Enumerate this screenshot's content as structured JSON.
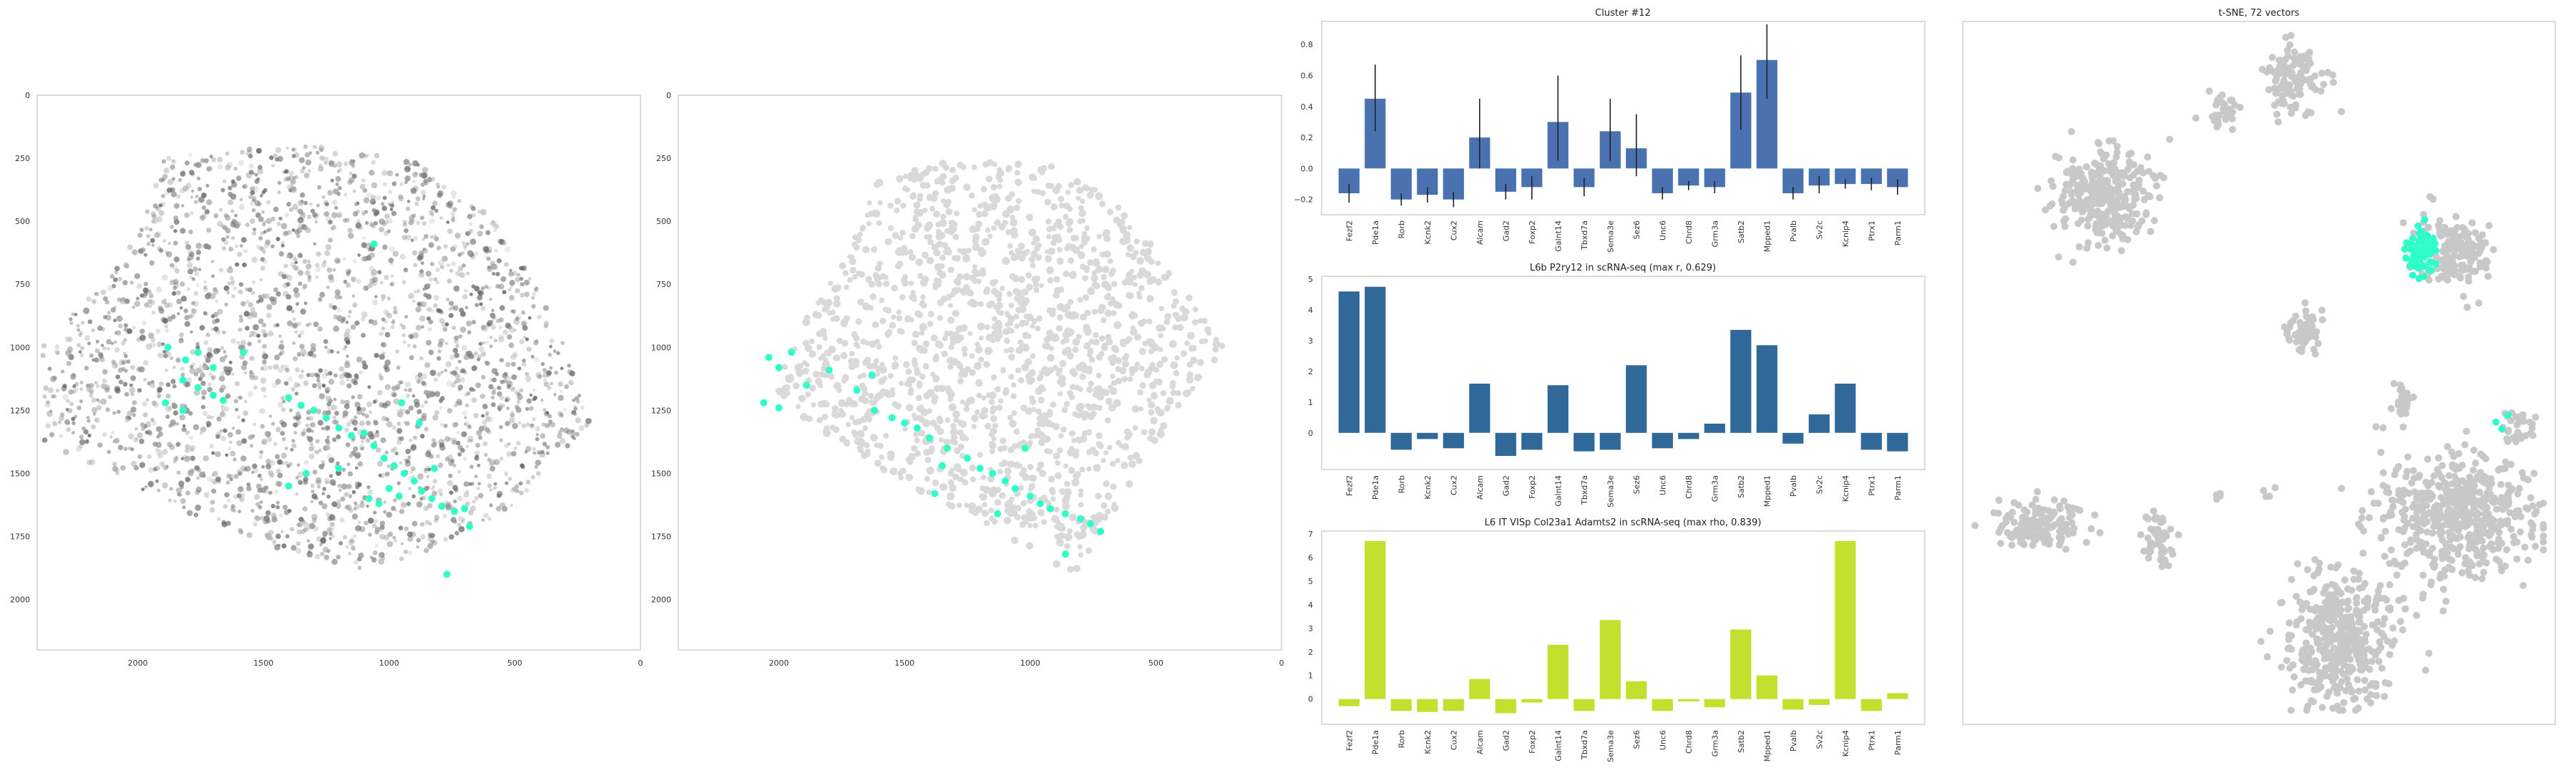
{
  "figure": {
    "colors": {
      "highlight": "#2effc8",
      "cell_gray": "#c8c8c8",
      "bar_blue": "#4a72b0",
      "bar_steel": "#30689a",
      "bar_lime": "#c3e02e",
      "frame": "#cfcfcf"
    }
  },
  "chart_data": [
    {
      "type": "scatter",
      "name": "spatial-expression",
      "title": "",
      "xlim": [
        2400,
        0
      ],
      "ylim": [
        2200,
        0
      ],
      "x_ticks": [
        "2000",
        "1500",
        "1000",
        "500",
        "0"
      ],
      "y_ticks": [
        "0",
        "250",
        "500",
        "750",
        "1000",
        "1250",
        "1500",
        "1750",
        "2000"
      ],
      "grid": false,
      "highlight_points": [
        [
          1880,
          1000
        ],
        [
          1810,
          1050
        ],
        [
          1760,
          1020
        ],
        [
          1700,
          1080
        ],
        [
          1580,
          1020
        ],
        [
          1820,
          1130
        ],
        [
          1760,
          1160
        ],
        [
          1700,
          1190
        ],
        [
          1660,
          1210
        ],
        [
          1890,
          1220
        ],
        [
          1820,
          1250
        ],
        [
          1400,
          1200
        ],
        [
          1350,
          1230
        ],
        [
          1300,
          1250
        ],
        [
          1250,
          1280
        ],
        [
          1200,
          1320
        ],
        [
          1150,
          1350
        ],
        [
          1100,
          1340
        ],
        [
          1060,
          1390
        ],
        [
          1020,
          1440
        ],
        [
          980,
          1470
        ],
        [
          940,
          1500
        ],
        [
          900,
          1530
        ],
        [
          870,
          1570
        ],
        [
          830,
          1600
        ],
        [
          790,
          1630
        ],
        [
          740,
          1650
        ],
        [
          700,
          1640
        ],
        [
          1000,
          1560
        ],
        [
          960,
          1590
        ],
        [
          1080,
          1600
        ],
        [
          1040,
          1620
        ],
        [
          1200,
          1480
        ],
        [
          1330,
          1500
        ],
        [
          1400,
          1550
        ],
        [
          950,
          1220
        ],
        [
          880,
          1300
        ],
        [
          820,
          1480
        ],
        [
          1060,
          590
        ],
        [
          680,
          1710
        ],
        [
          770,
          1900
        ]
      ]
    },
    {
      "type": "scatter",
      "name": "spatial-cluster",
      "title": "",
      "xlim": [
        2400,
        0
      ],
      "ylim": [
        2200,
        0
      ],
      "x_ticks": [
        "2000",
        "1500",
        "1000",
        "500",
        "0"
      ],
      "y_ticks": [
        "0",
        "250",
        "500",
        "750",
        "1000",
        "1250",
        "1500",
        "1750",
        "2000"
      ],
      "grid": false,
      "highlight_points": [
        [
          2040,
          1040
        ],
        [
          2000,
          1080
        ],
        [
          1950,
          1020
        ],
        [
          1890,
          1150
        ],
        [
          1800,
          1090
        ],
        [
          1630,
          1110
        ],
        [
          1690,
          1170
        ],
        [
          2060,
          1220
        ],
        [
          2000,
          1240
        ],
        [
          1620,
          1250
        ],
        [
          1550,
          1280
        ],
        [
          1500,
          1300
        ],
        [
          1450,
          1320
        ],
        [
          1400,
          1360
        ],
        [
          1330,
          1400
        ],
        [
          1250,
          1440
        ],
        [
          1200,
          1480
        ],
        [
          1150,
          1500
        ],
        [
          1100,
          1530
        ],
        [
          1060,
          1560
        ],
        [
          1000,
          1590
        ],
        [
          960,
          1620
        ],
        [
          920,
          1640
        ],
        [
          860,
          1660
        ],
        [
          800,
          1680
        ],
        [
          760,
          1700
        ],
        [
          720,
          1730
        ],
        [
          1020,
          1400
        ],
        [
          1130,
          1660
        ],
        [
          860,
          1820
        ],
        [
          1380,
          1580
        ],
        [
          1350,
          1470
        ]
      ]
    },
    {
      "type": "bar",
      "name": "cluster-12",
      "title": "Cluster #12",
      "categories": [
        "Fezf2",
        "Pde1a",
        "Rorb",
        "Kcnk2",
        "Cux2",
        "Alcam",
        "Gad2",
        "Foxp2",
        "Galnt14",
        "Tbxd7a",
        "Sema3e",
        "Sez6",
        "Unc6",
        "Chrd8",
        "Grm3a",
        "Satb2",
        "Mpped1",
        "Pvalb",
        "Sv2c",
        "Kcnip4",
        "Ptrx1",
        "Parm1"
      ],
      "values": [
        -0.16,
        0.45,
        -0.2,
        -0.17,
        -0.2,
        0.2,
        -0.15,
        -0.12,
        0.3,
        -0.12,
        0.24,
        0.13,
        -0.16,
        -0.11,
        -0.12,
        0.49,
        0.7,
        -0.16,
        -0.11,
        -0.1,
        -0.1,
        -0.12
      ],
      "errors": [
        [
          -0.22,
          -0.1
        ],
        [
          0.24,
          0.67
        ],
        [
          -0.24,
          -0.16
        ],
        [
          -0.22,
          -0.12
        ],
        [
          -0.25,
          -0.15
        ],
        [
          0.0,
          0.45
        ],
        [
          -0.2,
          -0.1
        ],
        [
          -0.2,
          -0.05
        ],
        [
          0.05,
          0.6
        ],
        [
          -0.18,
          -0.06
        ],
        [
          0.05,
          0.45
        ],
        [
          -0.05,
          0.35
        ],
        [
          -0.2,
          -0.12
        ],
        [
          -0.14,
          -0.08
        ],
        [
          -0.16,
          -0.08
        ],
        [
          0.25,
          0.73
        ],
        [
          0.45,
          0.93
        ],
        [
          -0.2,
          -0.12
        ],
        [
          -0.16,
          -0.05
        ],
        [
          -0.13,
          -0.07
        ],
        [
          -0.14,
          -0.06
        ],
        [
          -0.17,
          -0.07
        ]
      ],
      "ylim": [
        -0.28,
        0.93
      ],
      "y_ticks": [
        "−0.2",
        "0.0",
        "0.2",
        "0.4",
        "0.6",
        "0.8"
      ],
      "y_tick_values": [
        -0.2,
        0,
        0.2,
        0.4,
        0.6,
        0.8
      ],
      "grid": false
    },
    {
      "type": "bar",
      "name": "l6b-scrna",
      "title": "L6b P2ry12 in scRNA-seq (max r, 0.629)",
      "categories": [
        "Fezf2",
        "Pde1a",
        "Rorb",
        "Kcnk2",
        "Cux2",
        "Alcam",
        "Gad2",
        "Foxp2",
        "Galnt14",
        "Tbxd7a",
        "Sema3e",
        "Sez6",
        "Unc6",
        "Chrd8",
        "Grm3a",
        "Satb2",
        "Mpped1",
        "Pvalb",
        "Sv2c",
        "Kcnip4",
        "Ptrx1",
        "Parm1"
      ],
      "values": [
        4.6,
        4.75,
        -0.55,
        -0.2,
        -0.5,
        1.6,
        -0.75,
        -0.55,
        1.55,
        -0.6,
        -0.55,
        2.2,
        -0.5,
        -0.2,
        0.3,
        3.35,
        2.85,
        -0.35,
        0.6,
        1.6,
        -0.55,
        -0.6
      ],
      "ylim": [
        -1.1,
        5.0
      ],
      "y_ticks": [
        "0",
        "1",
        "2",
        "3",
        "4",
        "5"
      ],
      "y_tick_values": [
        0,
        1,
        2,
        3,
        4,
        5
      ],
      "grid": false
    },
    {
      "type": "bar",
      "name": "l6-it-scrna",
      "title": "L6 IT VISp Col23a1 Adamts2 in scRNA-seq (max rho, 0.839)",
      "categories": [
        "Fezf2",
        "Pde1a",
        "Rorb",
        "Kcnk2",
        "Cux2",
        "Alcam",
        "Gad2",
        "Foxp2",
        "Galnt14",
        "Tbxd7a",
        "Sema3e",
        "Sez6",
        "Unc6",
        "Chrd8",
        "Grm3a",
        "Satb2",
        "Mpped1",
        "Pvalb",
        "Sv2c",
        "Kcnip4",
        "Ptrx1",
        "Parm1"
      ],
      "values": [
        -0.3,
        6.7,
        -0.5,
        -0.55,
        -0.5,
        0.85,
        -0.6,
        -0.15,
        2.3,
        -0.5,
        3.35,
        0.75,
        -0.5,
        -0.1,
        -0.35,
        2.95,
        1.0,
        -0.45,
        -0.25,
        6.7,
        -0.5,
        0.25
      ],
      "ylim": [
        -0.95,
        7.0
      ],
      "y_ticks": [
        "0",
        "1",
        "2",
        "3",
        "4",
        "5",
        "6",
        "7"
      ],
      "y_tick_values": [
        0,
        1,
        2,
        3,
        4,
        5,
        6,
        7
      ],
      "grid": false
    },
    {
      "type": "scatter",
      "name": "tsne",
      "title": "t-SNE, 72 vectors",
      "grid": false,
      "axes_visible": false,
      "clusters": [
        {
          "cx": 0.56,
          "cy": 0.08,
          "rx": 0.05,
          "ry": 0.05,
          "n": 120,
          "highlight": false
        },
        {
          "cx": 0.44,
          "cy": 0.13,
          "rx": 0.03,
          "ry": 0.025,
          "n": 30,
          "highlight": false
        },
        {
          "cx": 0.24,
          "cy": 0.25,
          "rx": 0.08,
          "ry": 0.07,
          "n": 320,
          "highlight": false
        },
        {
          "cx": 0.83,
          "cy": 0.33,
          "rx": 0.06,
          "ry": 0.05,
          "n": 160,
          "highlight": false
        },
        {
          "cx": 0.77,
          "cy": 0.33,
          "rx": 0.03,
          "ry": 0.035,
          "n": 70,
          "highlight": true
        },
        {
          "cx": 0.58,
          "cy": 0.44,
          "rx": 0.03,
          "ry": 0.03,
          "n": 60,
          "highlight": false
        },
        {
          "cx": 0.74,
          "cy": 0.54,
          "rx": 0.025,
          "ry": 0.025,
          "n": 25,
          "highlight": false
        },
        {
          "cx": 0.83,
          "cy": 0.7,
          "rx": 0.13,
          "ry": 0.09,
          "n": 520,
          "highlight": false
        },
        {
          "cx": 0.94,
          "cy": 0.58,
          "rx": 0.03,
          "ry": 0.03,
          "n": 30,
          "highlight": false
        },
        {
          "cx": 0.12,
          "cy": 0.72,
          "rx": 0.07,
          "ry": 0.035,
          "n": 150,
          "highlight": false
        },
        {
          "cx": 0.33,
          "cy": 0.74,
          "rx": 0.025,
          "ry": 0.035,
          "n": 50,
          "highlight": false
        },
        {
          "cx": 0.52,
          "cy": 0.67,
          "rx": 0.01,
          "ry": 0.01,
          "n": 4,
          "highlight": false
        },
        {
          "cx": 0.43,
          "cy": 0.67,
          "rx": 0.01,
          "ry": 0.01,
          "n": 4,
          "highlight": false
        },
        {
          "cx": 0.64,
          "cy": 0.88,
          "rx": 0.09,
          "ry": 0.1,
          "n": 420,
          "highlight": false
        }
      ],
      "highlight_extra": [
        [
          0.9,
          0.57
        ],
        [
          0.92,
          0.56
        ],
        [
          0.91,
          0.58
        ]
      ]
    }
  ]
}
